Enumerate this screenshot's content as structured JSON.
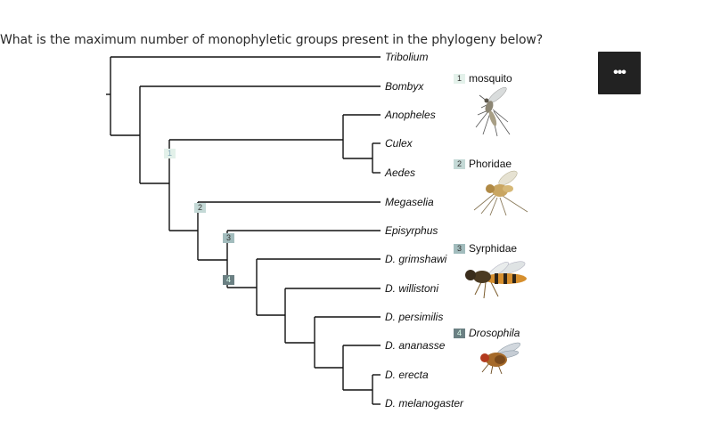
{
  "question": {
    "text": "What is the maximum number of monophyletic groups present in the phylogeny below?"
  },
  "menu": {
    "label": "•••"
  },
  "tree": {
    "taxa": [
      "Tribolium",
      "Bombyx",
      "Anopheles",
      "Culex",
      "Aedes",
      "Megaselia",
      "Episyrphus",
      "D. grimshawi",
      "D. willistoni",
      "D. persimilis",
      "D. ananasse",
      "D. erecta",
      "D. melanogaster"
    ],
    "node_markers": [
      "1",
      "2",
      "3",
      "4"
    ]
  },
  "legend": [
    {
      "number": "1",
      "label": "mosquito",
      "italic": false
    },
    {
      "number": "2",
      "label": "Phoridae",
      "italic": false
    },
    {
      "number": "3",
      "label": "Syrphidae",
      "italic": false
    },
    {
      "number": "4",
      "label": "Drosophila",
      "italic": true
    }
  ],
  "colors": {
    "marker_1": "#e3f1ea",
    "marker_2": "#c4d9d6",
    "marker_3": "#a2bcbd",
    "marker_4": "#6b8083",
    "menu_button": "#222222"
  },
  "icons": [
    "mosquito-illustration",
    "phorid-fly-illustration",
    "hoverfly-illustration",
    "fruit-fly-illustration",
    "more-options-icon"
  ]
}
